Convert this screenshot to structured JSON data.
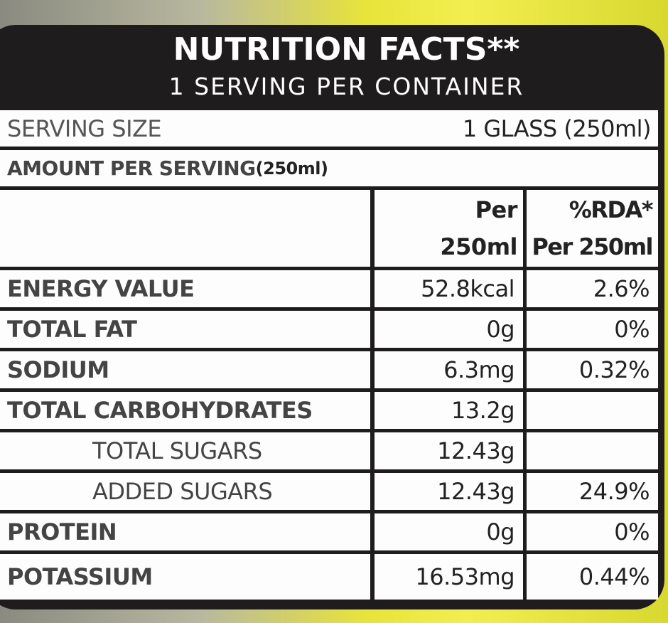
{
  "header": {
    "title": "NUTRITION FACTS**",
    "subtitle": "1 SERVING PER CONTAINER"
  },
  "serving_size": {
    "label": "SERVING SIZE",
    "value": "1 GLASS (250ml)"
  },
  "amount_per_serving": {
    "label": "AMOUNT PER SERVING",
    "unit": "(250ml)"
  },
  "table": {
    "columns": [
      [
        "Per",
        "250ml"
      ],
      [
        "%RDA*",
        "Per 250ml"
      ]
    ],
    "rows": [
      {
        "name": "ENERGY VALUE",
        "amount": "52.8kcal",
        "rda": "2.6%"
      },
      {
        "name": "TOTAL FAT",
        "amount": "0g",
        "rda": "0%"
      },
      {
        "name": "SODIUM",
        "amount": "6.3mg",
        "rda": "0.32%"
      },
      {
        "name": "TOTAL CARBOHYDRATES",
        "amount": "13.2g"
      },
      {
        "name": "TOTAL SUGARS",
        "amount": "12.43g"
      },
      {
        "name": "ADDED SUGARS",
        "amount": "12.43g",
        "rda": "24.9%"
      },
      {
        "name": "PROTEIN",
        "amount": "0g",
        "rda": "0%"
      },
      {
        "name": "POTASSIUM",
        "amount": "16.53mg",
        "rda": "0.44%"
      }
    ]
  }
}
